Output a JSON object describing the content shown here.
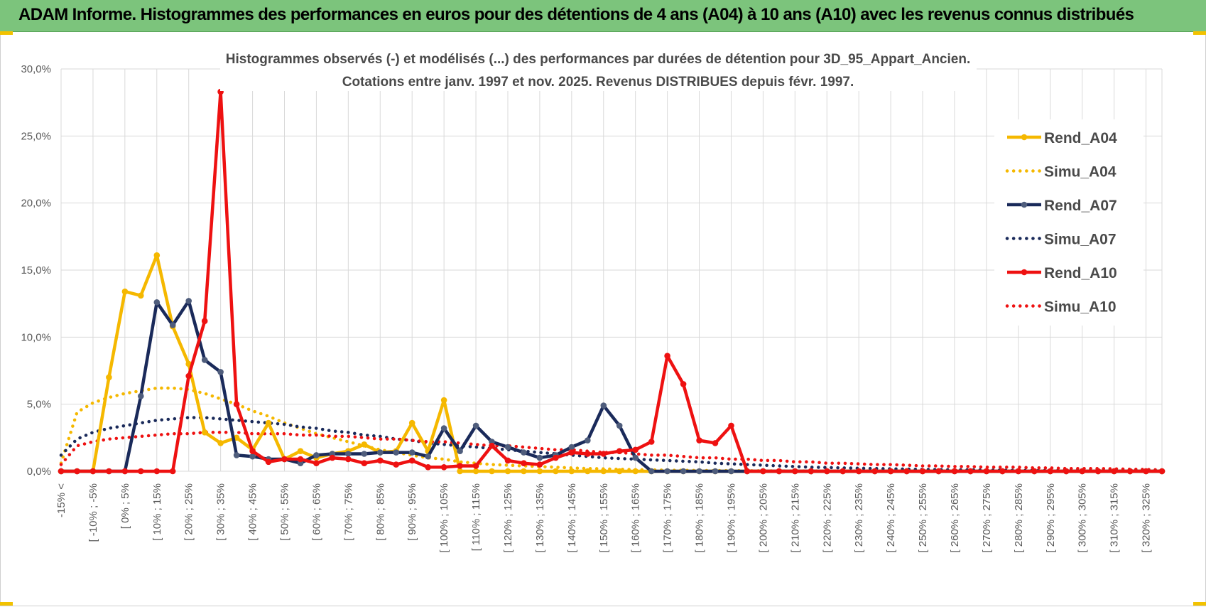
{
  "header": {
    "title": "ADAM Informe. Histogrammes des performances en euros pour des détentions de 4 ans (A04) à 10 ans (A10) avec les revenus connus distribués"
  },
  "colors": {
    "header_bg": "#7cc47c",
    "a04": "#f5b800",
    "a07": "#1a2a5a",
    "a10": "#ee1111",
    "grid": "#d9d9d9"
  },
  "chart_data": {
    "type": "line",
    "title_lines": [
      "Histogrammes observés (-) et modélisés (...) des performances par durées de détention pour 3D_95_Appart_Ancien.",
      "Cotations entre janv. 1997 et nov. 2025. Revenus DISTRIBUES depuis févr. 1997."
    ],
    "y_tick_labels": [
      "0,0%",
      "5,0%",
      "10,0%",
      "15,0%",
      "20,0%",
      "25,0%",
      "30,0%"
    ],
    "ylim": [
      0,
      30
    ],
    "x_tick_labels": [
      "-15% <",
      "[ -10% ; -5%",
      "[ 0% ; 5%",
      "[ 10% ; 15%",
      "[ 20% ; 25%",
      "[ 30% ; 35%",
      "[ 40% ; 45%",
      "[ 50% ; 55%",
      "[ 60% ; 65%",
      "[ 70% ; 75%",
      "[ 80% ; 85%",
      "[ 90% ; 95%",
      "[ 100% ; 105%",
      "[ 110% ; 115%",
      "[ 120% ; 125%",
      "[ 130% ; 135%",
      "[ 140% ; 145%",
      "[ 150% ; 155%",
      "[ 160% ; 165%",
      "[ 170% ; 175%",
      "[ 180% ; 185%",
      "[ 190% ; 195%",
      "[ 200% ; 205%",
      "[ 210% ; 215%",
      "[ 220% ; 225%",
      "[ 230% ; 235%",
      "[ 240% ; 245%",
      "[ 250% ; 255%",
      "[ 260% ; 265%",
      "[ 270% ; 275%",
      "[ 280% ; 285%",
      "[ 290% ; 295%",
      "[ 300% ; 305%",
      "[ 310% ; 315%",
      "[ 320% ; 325%"
    ],
    "n_bins": 70,
    "series": [
      {
        "name": "Rend_A04",
        "style": "solid",
        "color": "#f5b800",
        "values": [
          0,
          0,
          0,
          7.0,
          13.4,
          13.1,
          16.1,
          10.8,
          8.0,
          2.9,
          2.1,
          2.5,
          1.6,
          3.6,
          0.9,
          1.5,
          1.0,
          1.3,
          1.5,
          2.0,
          1.4,
          1.5,
          3.6,
          1.5,
          5.3,
          0,
          0,
          0,
          0,
          0,
          0,
          0,
          0,
          0,
          0,
          0,
          0,
          0,
          0,
          0,
          0,
          0,
          0,
          0,
          0,
          0,
          0,
          0,
          0,
          0,
          0,
          0,
          0,
          0,
          0,
          0,
          0,
          0,
          0,
          0,
          0,
          0,
          0,
          0,
          0,
          0,
          0,
          0,
          0,
          0
        ]
      },
      {
        "name": "Simu_A04",
        "style": "dotted",
        "color": "#f5b800",
        "values": [
          0.6,
          4.4,
          5.1,
          5.5,
          5.8,
          6.0,
          6.2,
          6.2,
          6.1,
          5.8,
          5.4,
          5.0,
          4.5,
          4.1,
          3.6,
          3.2,
          2.8,
          2.5,
          2.2,
          1.9,
          1.6,
          1.4,
          1.2,
          1.0,
          0.9,
          0.7,
          0.6,
          0.5,
          0.45,
          0.4,
          0.35,
          0.3,
          0.25,
          0.2,
          0.18,
          0.15,
          0.12,
          0.1,
          0.08,
          0.07,
          0.06,
          0.05,
          0.04,
          0.03,
          0.03,
          0.02,
          0.02,
          0.02,
          0.01,
          0.01,
          0.01,
          0.01,
          0.01,
          0.01,
          0,
          0,
          0,
          0,
          0,
          0,
          0,
          0,
          0,
          0,
          0,
          0,
          0,
          0,
          0,
          0
        ]
      },
      {
        "name": "Rend_A07",
        "style": "solid",
        "color": "#1a2a5a",
        "values": [
          0,
          0,
          0,
          0,
          0,
          5.6,
          12.6,
          10.9,
          12.7,
          8.3,
          7.4,
          1.2,
          1.1,
          0.9,
          0.9,
          0.6,
          1.2,
          1.3,
          1.3,
          1.3,
          1.4,
          1.4,
          1.4,
          1.1,
          3.2,
          1.5,
          3.4,
          2.2,
          1.8,
          1.4,
          1.0,
          1.2,
          1.8,
          2.3,
          4.9,
          3.4,
          1.0,
          0,
          0,
          0,
          0,
          0,
          0,
          0,
          0,
          0,
          0,
          0,
          0,
          0,
          0,
          0,
          0,
          0,
          0,
          0,
          0,
          0,
          0,
          0,
          0,
          0,
          0,
          0,
          0,
          0,
          0,
          0,
          0,
          0
        ]
      },
      {
        "name": "Simu_A07",
        "style": "dotted",
        "color": "#1a2a5a",
        "values": [
          1.2,
          2.4,
          2.9,
          3.2,
          3.4,
          3.6,
          3.8,
          3.9,
          4.0,
          4.0,
          3.9,
          3.8,
          3.7,
          3.6,
          3.5,
          3.3,
          3.2,
          3.0,
          2.9,
          2.7,
          2.6,
          2.4,
          2.3,
          2.1,
          2.0,
          1.9,
          1.8,
          1.7,
          1.6,
          1.5,
          1.4,
          1.3,
          1.2,
          1.1,
          1.0,
          0.95,
          0.9,
          0.85,
          0.8,
          0.75,
          0.7,
          0.6,
          0.55,
          0.5,
          0.45,
          0.4,
          0.35,
          0.3,
          0.28,
          0.25,
          0.22,
          0.2,
          0.18,
          0.16,
          0.14,
          0.12,
          0.11,
          0.1,
          0.09,
          0.08,
          0.07,
          0.06,
          0.05,
          0.04,
          0.04,
          0.03,
          0.03,
          0.02,
          0.02,
          0.01
        ]
      },
      {
        "name": "Rend_A10",
        "style": "solid",
        "color": "#ee1111",
        "values": [
          0,
          0,
          0,
          0,
          0,
          0,
          0,
          0,
          7.1,
          11.2,
          28.3,
          5.0,
          1.5,
          0.7,
          0.9,
          0.9,
          0.6,
          1.0,
          0.9,
          0.6,
          0.8,
          0.5,
          0.8,
          0.3,
          0.3,
          0.4,
          0.4,
          1.9,
          0.8,
          0.6,
          0.5,
          1.0,
          1.4,
          1.3,
          1.3,
          1.5,
          1.6,
          2.2,
          8.6,
          6.5,
          2.3,
          2.1,
          3.4,
          0,
          0,
          0,
          0,
          0,
          0,
          0,
          0,
          0,
          0,
          0,
          0,
          0,
          0,
          0,
          0,
          0,
          0,
          0,
          0,
          0,
          0,
          0,
          0,
          0,
          0,
          0
        ]
      },
      {
        "name": "Simu_A10",
        "style": "dotted",
        "color": "#ee1111",
        "values": [
          0.5,
          1.9,
          2.2,
          2.4,
          2.5,
          2.6,
          2.7,
          2.8,
          2.8,
          2.9,
          2.9,
          2.9,
          2.8,
          2.8,
          2.8,
          2.7,
          2.7,
          2.6,
          2.6,
          2.5,
          2.4,
          2.4,
          2.3,
          2.2,
          2.2,
          2.1,
          2.0,
          1.9,
          1.9,
          1.8,
          1.7,
          1.6,
          1.6,
          1.5,
          1.4,
          1.4,
          1.3,
          1.2,
          1.2,
          1.1,
          1.0,
          1.0,
          0.9,
          0.9,
          0.8,
          0.8,
          0.7,
          0.7,
          0.6,
          0.6,
          0.55,
          0.5,
          0.5,
          0.45,
          0.4,
          0.4,
          0.35,
          0.35,
          0.3,
          0.3,
          0.3,
          0.25,
          0.25,
          0.2,
          0.2,
          0.2,
          0.18,
          0.15,
          0.13,
          0.1
        ]
      }
    ],
    "legend": {
      "position": "right",
      "entries": [
        "Rend_A04",
        "Simu_A04",
        "Rend_A07",
        "Simu_A07",
        "Rend_A10",
        "Simu_A10"
      ]
    }
  }
}
